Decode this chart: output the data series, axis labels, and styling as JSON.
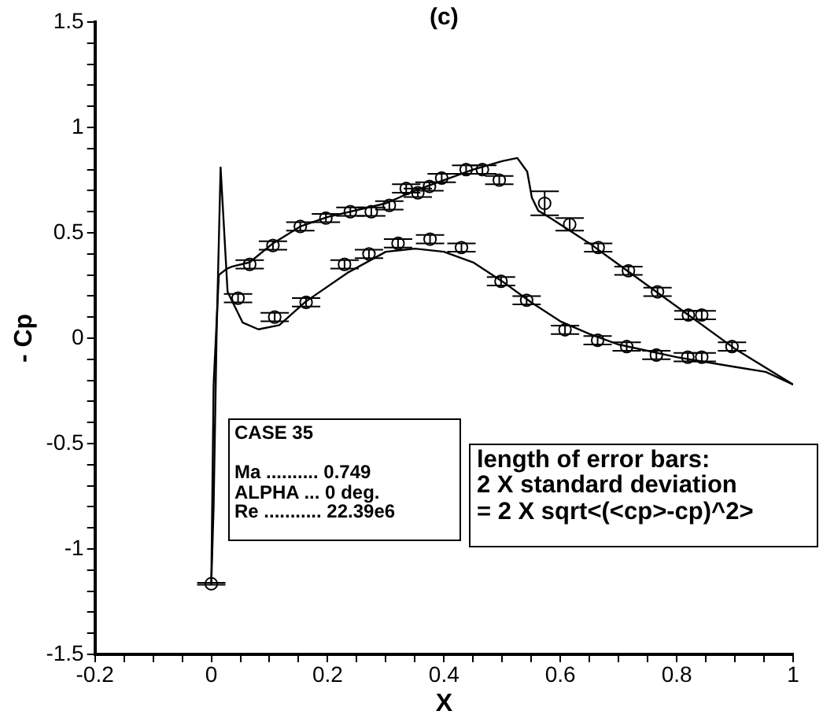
{
  "chart_data": {
    "type": "scatter",
    "title": "(c)",
    "xlabel": "X",
    "ylabel": "- Cp",
    "xlim": [
      -0.2,
      1
    ],
    "ylim": [
      -1.5,
      1.5
    ],
    "xticks": [
      -0.2,
      {
        "value": -0.15,
        "label": null
      },
      {
        "value": -0.1,
        "label": null
      },
      {
        "value": -0.05,
        "label": null
      },
      0,
      {
        "value": 0.05,
        "label": null
      },
      {
        "value": 0.1,
        "label": null
      },
      {
        "value": 0.15,
        "label": null
      },
      0.2,
      {
        "value": 0.25,
        "label": null
      },
      {
        "value": 0.3,
        "label": null
      },
      {
        "value": 0.35,
        "label": null
      },
      0.4,
      {
        "value": 0.45,
        "label": null
      },
      {
        "value": 0.5,
        "label": null
      },
      {
        "value": 0.55,
        "label": null
      },
      0.6,
      {
        "value": 0.65,
        "label": null
      },
      {
        "value": 0.7,
        "label": null
      },
      {
        "value": 0.75,
        "label": null
      },
      0.8,
      {
        "value": 0.85,
        "label": null
      },
      {
        "value": 0.9,
        "label": null
      },
      {
        "value": 0.95,
        "label": null
      },
      1
    ],
    "yticks": [
      -1.5,
      {
        "value": -1.4,
        "label": null
      },
      {
        "value": -1.3,
        "label": null
      },
      {
        "value": -1.2,
        "label": null
      },
      {
        "value": -1.1,
        "label": null
      },
      -1,
      {
        "value": -0.9,
        "label": null
      },
      {
        "value": -0.8,
        "label": null
      },
      {
        "value": -0.7,
        "label": null
      },
      {
        "value": -0.6,
        "label": null
      },
      -0.5,
      {
        "value": -0.4,
        "label": null
      },
      {
        "value": -0.3,
        "label": null
      },
      {
        "value": -0.2,
        "label": null
      },
      {
        "value": -0.1,
        "label": null
      },
      0,
      {
        "value": 0.1,
        "label": null
      },
      {
        "value": 0.2,
        "label": null
      },
      {
        "value": 0.3,
        "label": null
      },
      {
        "value": 0.4,
        "label": null
      },
      0.5,
      {
        "value": 0.6,
        "label": null
      },
      {
        "value": 0.7,
        "label": null
      },
      {
        "value": 0.8,
        "label": null
      },
      {
        "value": 0.9,
        "label": null
      },
      1,
      {
        "value": 1.1,
        "label": null
      },
      {
        "value": 1.2,
        "label": null
      },
      {
        "value": 1.3,
        "label": null
      },
      {
        "value": 1.4,
        "label": null
      },
      1.5
    ],
    "grid": false,
    "legend": false,
    "series": [
      {
        "type": "line",
        "color": "#000000",
        "marker": "none",
        "line_style": "solid",
        "x": [
          0,
          0.004,
          0.009,
          0.016,
          0.028,
          0.054,
          0.081,
          0.117,
          0.162,
          0.234,
          0.3,
          0.35,
          0.4,
          0.45,
          0.5,
          0.55,
          0.6,
          0.65,
          0.7,
          0.8,
          0.9,
          0.953,
          1.0
        ],
        "values": [
          -1.165,
          -0.8,
          0.0,
          0.81,
          0.22,
          0.074,
          0.042,
          0.062,
          0.173,
          0.31,
          0.41,
          0.425,
          0.41,
          0.36,
          0.27,
          0.17,
          0.08,
          0.02,
          -0.03,
          -0.09,
          -0.136,
          -0.16,
          -0.22
        ]
      },
      {
        "type": "line",
        "color": "#000000",
        "marker": "none",
        "line_style": "solid",
        "x": [
          0,
          0.004,
          0.013,
          0.027,
          0.036,
          0.066,
          0.106,
          0.153,
          0.2,
          0.3,
          0.35,
          0.45,
          0.5,
          0.526,
          0.543,
          0.551,
          0.562,
          0.584,
          0.65,
          0.7,
          0.8,
          0.9,
          1.0
        ],
        "values": [
          -1.165,
          -0.22,
          0.3,
          0.33,
          0.34,
          0.36,
          0.45,
          0.53,
          0.575,
          0.64,
          0.7,
          0.8,
          0.84,
          0.855,
          0.79,
          0.667,
          0.605,
          0.568,
          0.45,
          0.35,
          0.15,
          -0.05,
          -0.22
        ]
      },
      {
        "type": "scatter",
        "color": "#000000",
        "marker": "circle",
        "x": [
          0,
          0.066,
          0.106,
          0.153,
          0.197,
          0.239,
          0.275,
          0.306,
          0.335,
          0.355,
          0.375,
          0.396,
          0.438,
          0.466,
          0.495,
          0.573,
          0.616,
          0.665,
          0.717,
          0.767,
          0.82,
          0.843,
          0.895,
          0.046,
          0.109,
          0.163,
          0.229,
          0.271,
          0.321,
          0.376,
          0.43,
          0.498,
          0.542,
          0.608,
          0.664,
          0.714,
          0.765,
          0.819,
          0.843
        ],
        "values": [
          -1.165,
          0.35,
          0.44,
          0.53,
          0.57,
          0.6,
          0.6,
          0.63,
          0.71,
          0.69,
          0.72,
          0.76,
          0.8,
          0.8,
          0.75,
          0.64,
          0.54,
          0.43,
          0.32,
          0.22,
          0.11,
          0.11,
          -0.04,
          0.19,
          0.1,
          0.17,
          0.35,
          0.4,
          0.45,
          0.47,
          0.43,
          0.27,
          0.18,
          0.04,
          -0.01,
          -0.04,
          -0.08,
          -0.09,
          -0.09
        ],
        "errors": [
          0.005,
          0.02,
          0.02,
          0.02,
          0.02,
          0.02,
          0.02,
          0.02,
          0.02,
          0.02,
          0.02,
          0.02,
          0.02,
          0.02,
          0.02,
          0.057,
          0.03,
          0.02,
          0.02,
          0.02,
          0.02,
          0.02,
          0.02,
          0.02,
          0.02,
          0.02,
          0.02,
          0.02,
          0.02,
          0.02,
          0.02,
          0.02,
          0.02,
          0.02,
          0.02,
          0.02,
          0.02,
          0.02,
          0.02
        ]
      }
    ],
    "annotations": [
      "CASE 35\n\nMa .......... 0.749\nALPHA ... 0 deg.\nRe ........... 22.39e6",
      "length of error bars:\n2 X standard deviation\n= 2 X sqrt<(<cp>-cp)^2>"
    ]
  }
}
